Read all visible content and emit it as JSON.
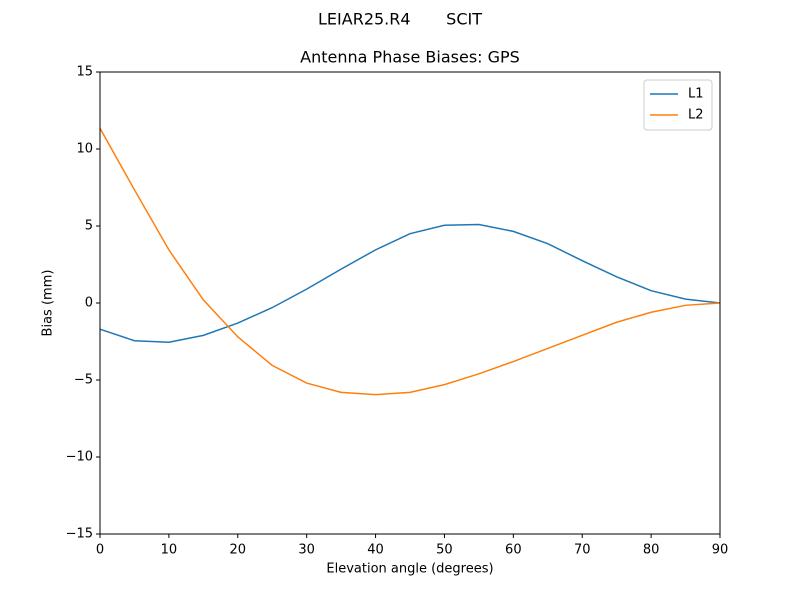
{
  "chart_data": {
    "type": "line",
    "suptitle": "LEIAR25.R4       SCIT",
    "title": "Antenna Phase Biases: GPS",
    "xlabel": "Elevation angle (degrees)",
    "ylabel": "Bias (mm)",
    "x": [
      0,
      5,
      10,
      15,
      20,
      25,
      30,
      35,
      40,
      45,
      50,
      55,
      60,
      65,
      70,
      75,
      80,
      85,
      90
    ],
    "series": [
      {
        "name": "L1",
        "color": "#1f77b4",
        "values": [
          -1.7,
          -2.45,
          -2.55,
          -2.1,
          -1.3,
          -0.3,
          0.9,
          2.2,
          3.45,
          4.5,
          5.05,
          5.1,
          4.65,
          3.85,
          2.75,
          1.7,
          0.8,
          0.25,
          0
        ]
      },
      {
        "name": "L2",
        "color": "#ff7f0e",
        "values": [
          11.35,
          7.35,
          3.45,
          0.2,
          -2.2,
          -4.05,
          -5.2,
          -5.8,
          -5.95,
          -5.8,
          -5.3,
          -4.6,
          -3.8,
          -2.95,
          -2.1,
          -1.25,
          -0.6,
          -0.15,
          0
        ]
      }
    ],
    "xlim": [
      0,
      90
    ],
    "xticks": [
      0,
      10,
      20,
      30,
      40,
      50,
      60,
      70,
      80,
      90
    ],
    "ylim": [
      -15,
      15
    ],
    "yticks": [
      {
        "value": -15,
        "label": "−15"
      },
      {
        "value": -10,
        "label": "−10"
      },
      {
        "value": -5,
        "label": "−5"
      },
      0,
      5,
      10,
      15
    ],
    "legend": "upper right"
  }
}
